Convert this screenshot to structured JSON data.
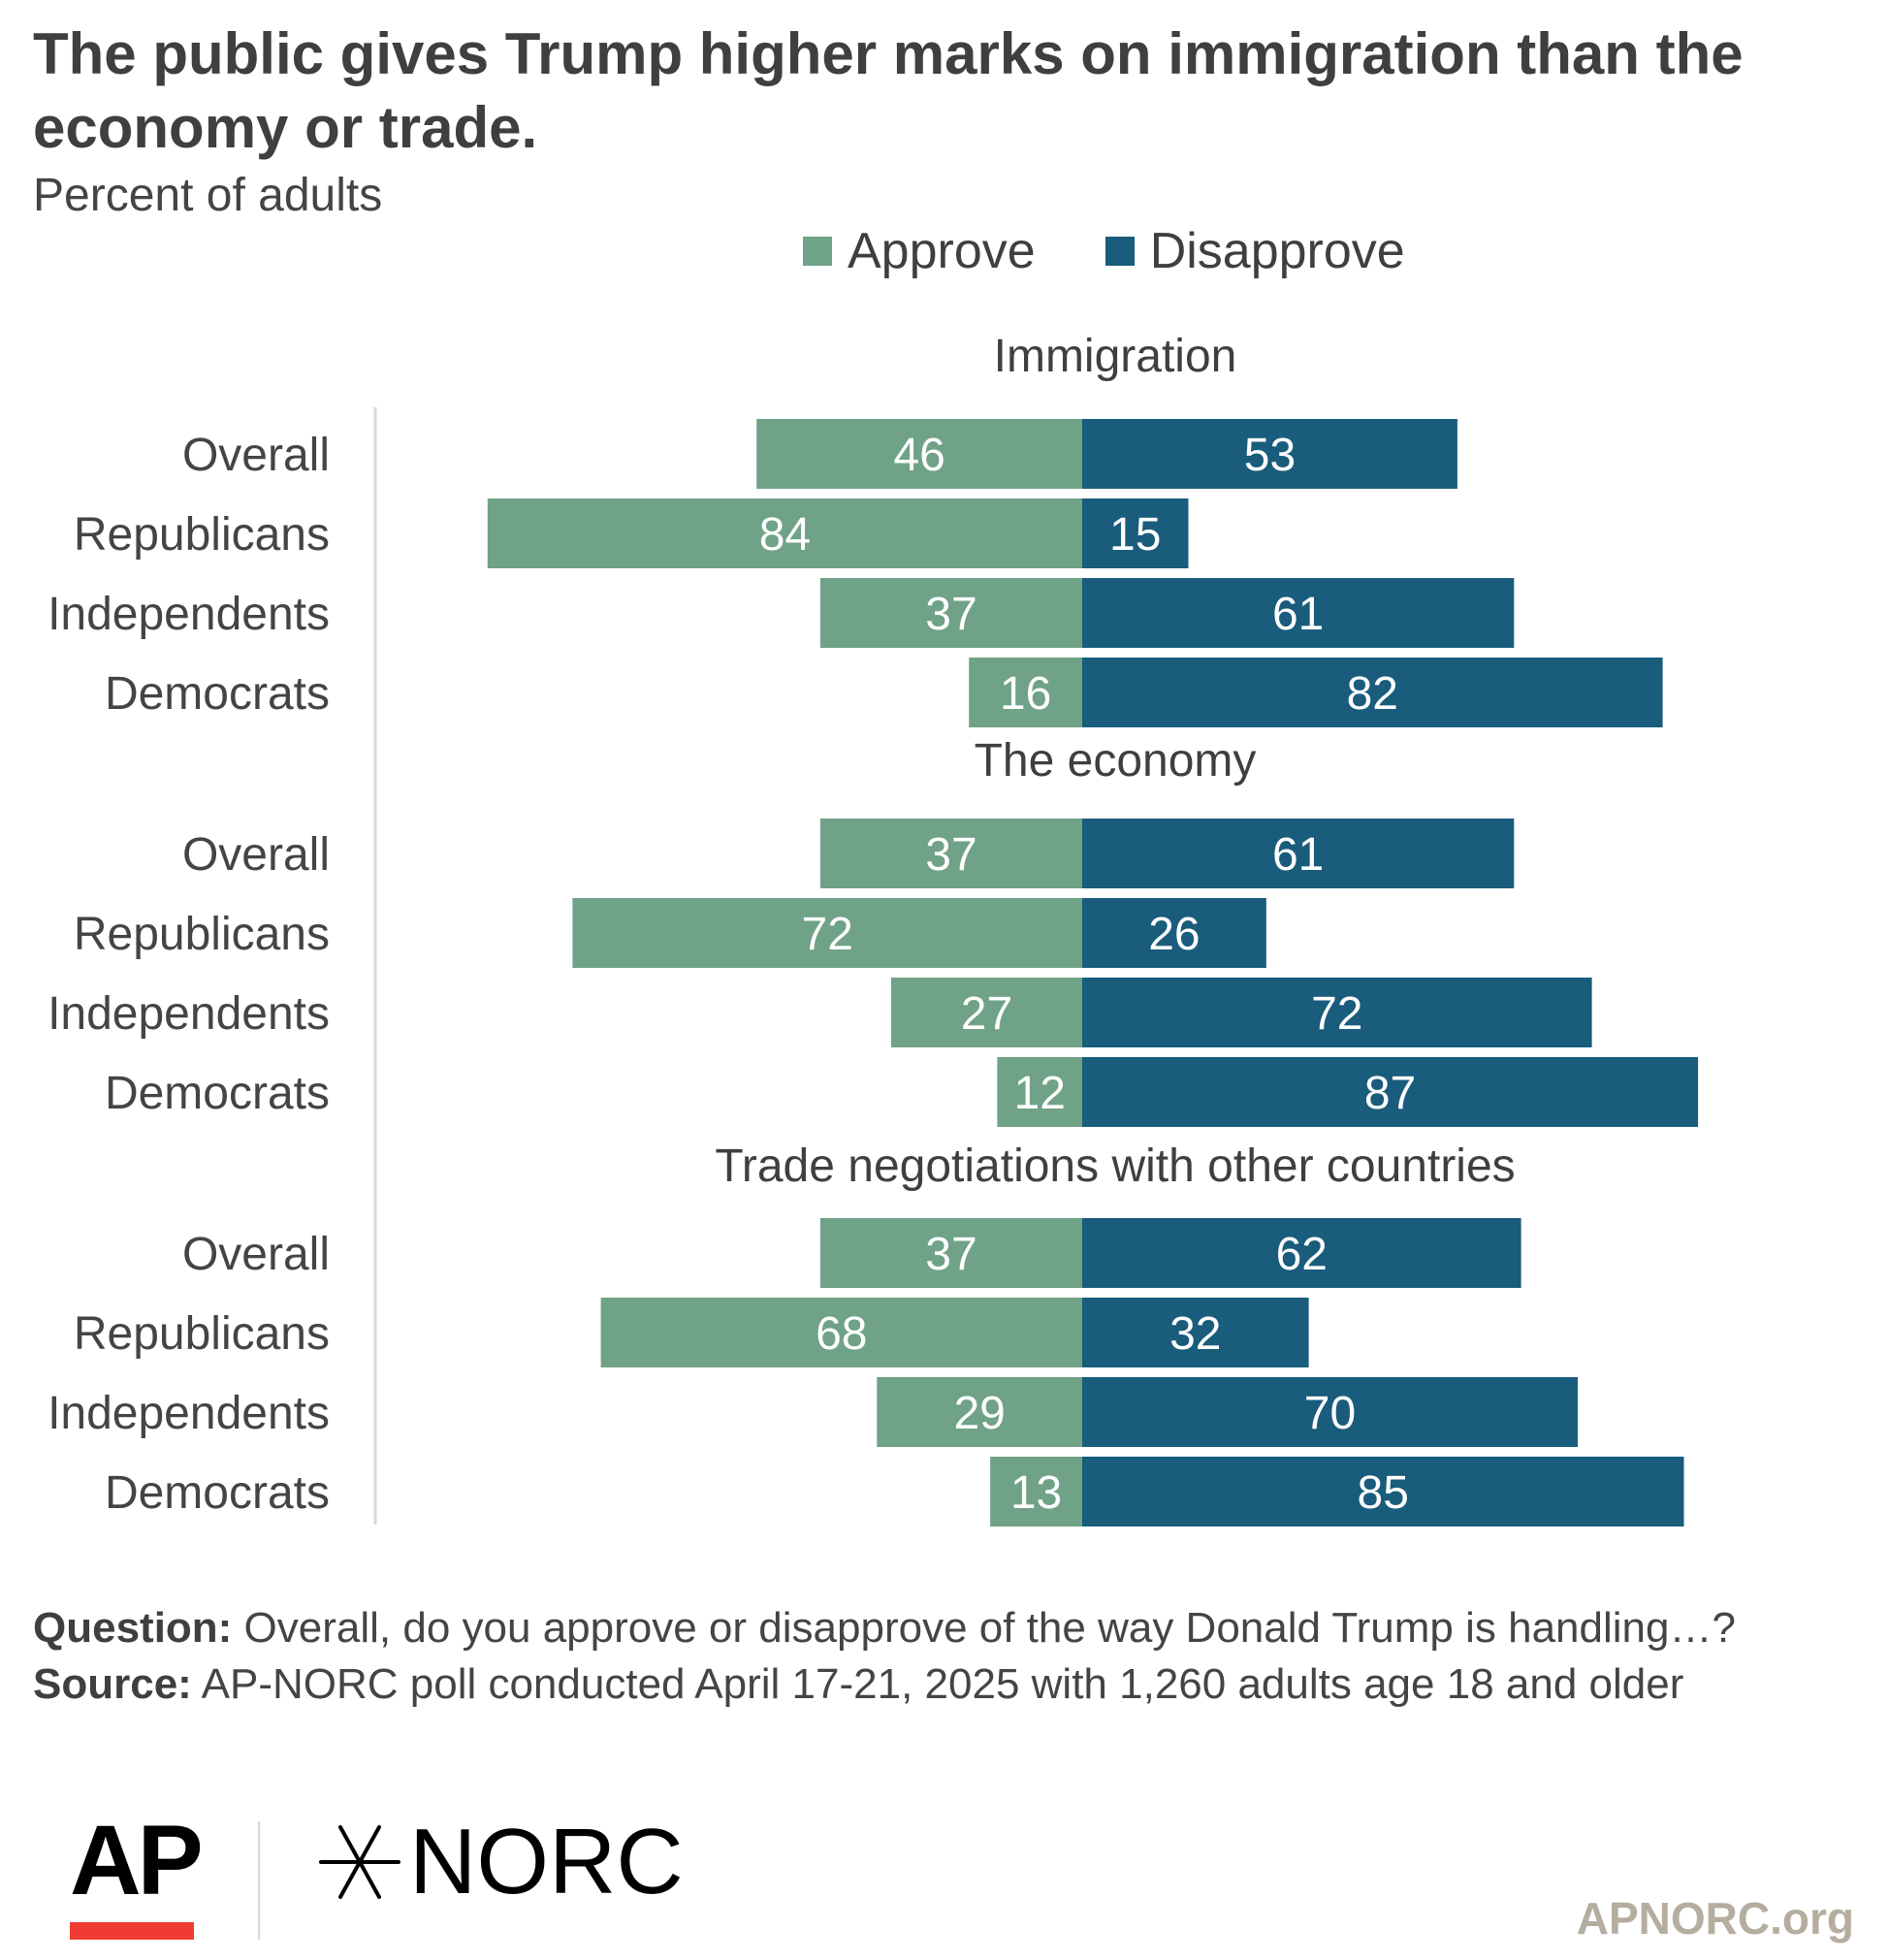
{
  "title": "The public gives Trump higher marks on immigration than the economy or trade.",
  "subtitle": "Percent of adults",
  "footer": {
    "question_label": "Question:",
    "question_text": " Overall, do you approve or disapprove of the way Donald Trump is handling…?",
    "source_label": "Source:",
    "source_text": " AP-NORC poll conducted April 17-21, 2025 with 1,260 adults age 18 and older"
  },
  "logos": {
    "ap": "AP",
    "norc": "NORC"
  },
  "site": "APNORC.org",
  "colors": {
    "approve": "#6fa286",
    "disapprove": "#195c7c",
    "text": "#444444"
  },
  "chart_data": {
    "type": "bar",
    "orientation": "horizontal-diverging",
    "title": "The public gives Trump higher marks on immigration than the economy or trade.",
    "subtitle": "Percent of adults",
    "legend": {
      "position": "top-center",
      "entries": [
        "Approve",
        "Disapprove"
      ]
    },
    "series_names": [
      "Approve",
      "Disapprove"
    ],
    "xlim": [
      -90,
      90
    ],
    "grid": false,
    "groups": [
      {
        "label": "Immigration",
        "rows": [
          {
            "category": "Overall",
            "approve": 46,
            "disapprove": 53
          },
          {
            "category": "Republicans",
            "approve": 84,
            "disapprove": 15
          },
          {
            "category": "Independents",
            "approve": 37,
            "disapprove": 61
          },
          {
            "category": "Democrats",
            "approve": 16,
            "disapprove": 82
          }
        ]
      },
      {
        "label": "The economy",
        "rows": [
          {
            "category": "Overall",
            "approve": 37,
            "disapprove": 61
          },
          {
            "category": "Republicans",
            "approve": 72,
            "disapprove": 26
          },
          {
            "category": "Independents",
            "approve": 27,
            "disapprove": 72
          },
          {
            "category": "Democrats",
            "approve": 12,
            "disapprove": 87
          }
        ]
      },
      {
        "label": "Trade negotiations with other countries",
        "rows": [
          {
            "category": "Overall",
            "approve": 37,
            "disapprove": 62
          },
          {
            "category": "Republicans",
            "approve": 68,
            "disapprove": 32
          },
          {
            "category": "Independents",
            "approve": 29,
            "disapprove": 70
          },
          {
            "category": "Democrats",
            "approve": 13,
            "disapprove": 85
          }
        ]
      }
    ]
  }
}
